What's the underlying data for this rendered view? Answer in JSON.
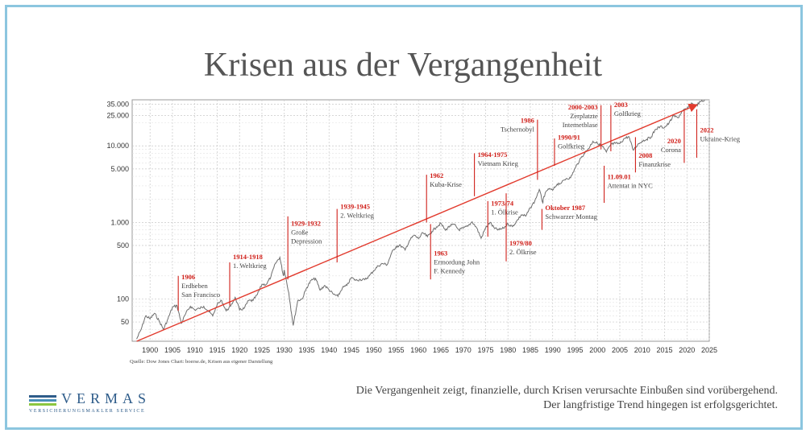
{
  "title": "Krisen aus der Vergangenheit",
  "source": "Quelle: Dow Jones Chart: boerse.de, Krisen aus eigener Darstellung",
  "caption": {
    "line1": "Die Vergangenheit zeigt, finanzielle, durch Krisen verursachte Einbußen sind vorübergehend.",
    "line2": "Der langfristige Trend hingegen ist erfolgsgerichtet."
  },
  "logo": {
    "name": "VERMAS",
    "subtitle": "VERSICHERUNGSMAKLER SERVICE",
    "bar_colors": [
      "#2e5c8a",
      "#4a8fb8",
      "#8cc63f"
    ]
  },
  "colors": {
    "line": "#6e6e6e",
    "trend": "#e23b2e",
    "annotation_year": "#d0201a",
    "annotation_text": "#444444",
    "grid": "#c8c8c8"
  },
  "chart_data": {
    "type": "line",
    "title": "",
    "xlabel": "",
    "ylabel": "",
    "y_scale": "log",
    "xlim": [
      1896,
      2025
    ],
    "ylim": [
      28,
      40000
    ],
    "x_ticks": [
      1900,
      1905,
      1910,
      1915,
      1920,
      1925,
      1930,
      1935,
      1940,
      1945,
      1950,
      1955,
      1960,
      1965,
      1970,
      1975,
      1980,
      1985,
      1990,
      1995,
      2000,
      2005,
      2010,
      2015,
      2020,
      2025
    ],
    "y_ticks": [
      {
        "value": 50,
        "label": "50"
      },
      {
        "value": 100,
        "label": "100"
      },
      {
        "value": 500,
        "label": "500"
      },
      {
        "value": 1000,
        "label": "1.000"
      },
      {
        "value": 5000,
        "label": "5.000"
      },
      {
        "value": 10000,
        "label": "10.000"
      },
      {
        "value": 25000,
        "label": "25.000"
      },
      {
        "value": 35000,
        "label": "35.000"
      }
    ],
    "grid": true,
    "series": [
      {
        "name": "",
        "points": [
          [
            1897,
            30
          ],
          [
            1898,
            40
          ],
          [
            1899,
            60
          ],
          [
            1900,
            55
          ],
          [
            1901,
            65
          ],
          [
            1902,
            52
          ],
          [
            1903,
            40
          ],
          [
            1904,
            55
          ],
          [
            1905,
            78
          ],
          [
            1906,
            82
          ],
          [
            1907,
            48
          ],
          [
            1908,
            65
          ],
          [
            1909,
            80
          ],
          [
            1910,
            72
          ],
          [
            1911,
            75
          ],
          [
            1912,
            80
          ],
          [
            1913,
            70
          ],
          [
            1914,
            60
          ],
          [
            1915,
            85
          ],
          [
            1916,
            95
          ],
          [
            1917,
            70
          ],
          [
            1918,
            80
          ],
          [
            1919,
            105
          ],
          [
            1920,
            72
          ],
          [
            1921,
            75
          ],
          [
            1922,
            95
          ],
          [
            1923,
            95
          ],
          [
            1924,
            115
          ],
          [
            1925,
            155
          ],
          [
            1926,
            155
          ],
          [
            1927,
            195
          ],
          [
            1928,
            290
          ],
          [
            1929,
            350
          ],
          [
            1929.8,
            200
          ],
          [
            1930,
            240
          ],
          [
            1931,
            120
          ],
          [
            1932,
            45
          ],
          [
            1933,
            95
          ],
          [
            1934,
            100
          ],
          [
            1935,
            140
          ],
          [
            1936,
            175
          ],
          [
            1937,
            185
          ],
          [
            1938,
            130
          ],
          [
            1939,
            150
          ],
          [
            1940,
            132
          ],
          [
            1941,
            115
          ],
          [
            1942,
            108
          ],
          [
            1943,
            140
          ],
          [
            1944,
            150
          ],
          [
            1945,
            190
          ],
          [
            1946,
            175
          ],
          [
            1947,
            180
          ],
          [
            1948,
            178
          ],
          [
            1949,
            200
          ],
          [
            1950,
            235
          ],
          [
            1951,
            270
          ],
          [
            1952,
            290
          ],
          [
            1953,
            280
          ],
          [
            1954,
            400
          ],
          [
            1955,
            485
          ],
          [
            1956,
            500
          ],
          [
            1957,
            435
          ],
          [
            1958,
            580
          ],
          [
            1959,
            680
          ],
          [
            1960,
            615
          ],
          [
            1961,
            730
          ],
          [
            1962,
            650
          ],
          [
            1963,
            760
          ],
          [
            1964,
            875
          ],
          [
            1965,
            970
          ],
          [
            1966,
            790
          ],
          [
            1967,
            900
          ],
          [
            1968,
            940
          ],
          [
            1969,
            800
          ],
          [
            1970,
            840
          ],
          [
            1971,
            890
          ],
          [
            1972,
            1020
          ],
          [
            1973,
            850
          ],
          [
            1974,
            620
          ],
          [
            1975,
            850
          ],
          [
            1976,
            1000
          ],
          [
            1977,
            830
          ],
          [
            1978,
            800
          ],
          [
            1979,
            840
          ],
          [
            1980,
            960
          ],
          [
            1981,
            880
          ],
          [
            1982,
            1050
          ],
          [
            1983,
            1260
          ],
          [
            1984,
            1210
          ],
          [
            1985,
            1550
          ],
          [
            1986,
            1900
          ],
          [
            1987,
            2700
          ],
          [
            1987.8,
            1800
          ],
          [
            1988,
            2170
          ],
          [
            1989,
            2750
          ],
          [
            1990,
            2630
          ],
          [
            1991,
            3170
          ],
          [
            1992,
            3300
          ],
          [
            1993,
            3750
          ],
          [
            1994,
            3830
          ],
          [
            1995,
            5100
          ],
          [
            1996,
            6450
          ],
          [
            1997,
            7900
          ],
          [
            1998,
            9200
          ],
          [
            1999,
            11500
          ],
          [
            2000,
            10800
          ],
          [
            2001,
            10000
          ],
          [
            2002,
            8300
          ],
          [
            2003,
            10450
          ],
          [
            2004,
            10800
          ],
          [
            2005,
            10700
          ],
          [
            2006,
            12460
          ],
          [
            2007,
            13260
          ],
          [
            2008,
            8800
          ],
          [
            2009,
            10400
          ],
          [
            2010,
            11600
          ],
          [
            2011,
            12200
          ],
          [
            2012,
            13100
          ],
          [
            2013,
            16500
          ],
          [
            2014,
            17800
          ],
          [
            2015,
            17400
          ],
          [
            2016,
            19800
          ],
          [
            2017,
            24700
          ],
          [
            2018,
            23300
          ],
          [
            2019,
            28500
          ],
          [
            2020,
            30600
          ],
          [
            2021,
            36300
          ],
          [
            2022,
            33100
          ],
          [
            2023,
            37700
          ],
          [
            2024,
            39000
          ]
        ]
      }
    ],
    "trendline": {
      "from": [
        1897,
        28
      ],
      "to": [
        2022,
        34000
      ]
    },
    "annotations": [
      {
        "year_label": "1906",
        "text": [
          "Erdbeben",
          "San Francisco"
        ],
        "x": 1906.3,
        "text_side": "right",
        "line_y": [
          70,
          200
        ],
        "text_top_value": 180
      },
      {
        "year_label": "1914-1918",
        "text": [
          "1. Weltkrieg"
        ],
        "x": 1917.8,
        "text_side": "right",
        "line_y": [
          82,
          300
        ],
        "text_top_value": 330
      },
      {
        "year_label": "1929-1932",
        "text": [
          "Große",
          "Depression"
        ],
        "x": 1930.8,
        "text_side": "right",
        "line_y": [
          180,
          1200
        ],
        "text_top_value": 900
      },
      {
        "year_label": "1939-1945",
        "text": [
          "2. Weltkrieg"
        ],
        "x": 1941.8,
        "text_side": "right",
        "line_y": [
          300,
          1500
        ],
        "text_top_value": 1500
      },
      {
        "year_label": "1962",
        "text": [
          "Kuba-Krise"
        ],
        "x": 1961.8,
        "text_side": "right",
        "line_y": [
          1000,
          4200
        ],
        "text_top_value": 3800
      },
      {
        "year_label": "1963",
        "text": [
          "Ermordung John",
          "F. Kennedy"
        ],
        "x": 1962.7,
        "text_side": "right",
        "line_y": [
          180,
          950
        ],
        "text_top_value": 370
      },
      {
        "year_label": "1964-1975",
        "text": [
          "Vietnam Krieg"
        ],
        "x": 1972.5,
        "text_side": "right",
        "line_y": [
          2200,
          8000
        ],
        "text_top_value": 7200
      },
      {
        "year_label": "1973/74",
        "text": [
          "1. Ölkrise"
        ],
        "x": 1975.5,
        "text_side": "right",
        "line_y": [
          650,
          1900
        ],
        "text_top_value": 1650
      },
      {
        "year_label": "1979/80",
        "text": [
          "2. Ölkrise"
        ],
        "x": 1979.6,
        "text_side": "right",
        "line_y": [
          310,
          2400
        ],
        "text_top_value": 500
      },
      {
        "year_label": "1986",
        "text": [
          "Tschernobyl"
        ],
        "x": 1986.6,
        "text_side": "left",
        "line_y": [
          3600,
          22000
        ],
        "text_top_value": 20000
      },
      {
        "year_label": "Oktober 1987",
        "text": [
          "Schwarzer Montag"
        ],
        "x": 1987.6,
        "text_side": "right",
        "line_y": [
          800,
          1500
        ],
        "text_top_value": 1450
      },
      {
        "year_label": "1990/91",
        "text": [
          "Golfkrieg"
        ],
        "x": 1990.4,
        "text_side": "right",
        "line_y": [
          5500,
          12500
        ],
        "text_top_value": 12000
      },
      {
        "year_label": "2000-2003",
        "text": [
          "Zerplatzte",
          "Internetblase"
        ],
        "x": 2000.8,
        "text_side": "left",
        "line_y": [
          9000,
          34000
        ],
        "text_top_value": 30000
      },
      {
        "year_label": "2003",
        "text": [
          "Golfkrieg"
        ],
        "x": 2003.0,
        "text_side": "right",
        "line_y": [
          8500,
          34000
        ],
        "text_top_value": 32000
      },
      {
        "year_label": "11.09.01",
        "text": [
          "Attentat in NYC"
        ],
        "x": 2001.5,
        "text_side": "right",
        "line_y": [
          1800,
          5500
        ],
        "text_top_value": 3700
      },
      {
        "year_label": "2008",
        "text": [
          "Finanzkrise"
        ],
        "x": 2008.5,
        "text_side": "right",
        "line_y": [
          4500,
          13000
        ],
        "text_top_value": 7000
      },
      {
        "year_label": "2020",
        "text": [
          "Corona"
        ],
        "x": 2019.4,
        "text_side": "left",
        "line_y": [
          6000,
          29000
        ],
        "text_top_value": 10800
      },
      {
        "year_label": "2022",
        "text": [
          "Ukraine-Krieg"
        ],
        "x": 2022.2,
        "text_side": "right",
        "line_y": [
          7000,
          30000
        ],
        "text_top_value": 15000
      }
    ]
  }
}
